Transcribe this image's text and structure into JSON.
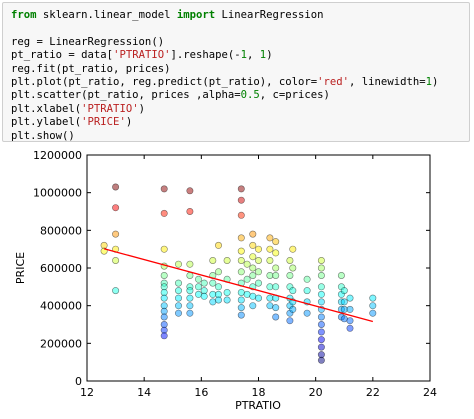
{
  "code_cell": {
    "lines": [
      {
        "segments": [
          {
            "t": "from",
            "c": "kw"
          },
          {
            "t": " sklearn.linear_model ",
            "c": ""
          },
          {
            "t": "import",
            "c": "kw"
          },
          {
            "t": " LinearRegression",
            "c": ""
          }
        ]
      },
      {
        "segments": [
          {
            "t": "",
            "c": ""
          }
        ]
      },
      {
        "segments": [
          {
            "t": "reg = LinearRegression()",
            "c": ""
          }
        ]
      },
      {
        "segments": [
          {
            "t": "pt_ratio = data[",
            "c": ""
          },
          {
            "t": "'PTRATIO'",
            "c": "str"
          },
          {
            "t": "].reshape(-",
            "c": ""
          },
          {
            "t": "1",
            "c": "num"
          },
          {
            "t": ", ",
            "c": ""
          },
          {
            "t": "1",
            "c": "num"
          },
          {
            "t": ")",
            "c": ""
          }
        ]
      },
      {
        "segments": [
          {
            "t": "reg.fit(pt_ratio, prices)",
            "c": ""
          }
        ]
      },
      {
        "segments": [
          {
            "t": "plt.plot(pt_ratio, reg.predict(pt_ratio), color=",
            "c": ""
          },
          {
            "t": "'red'",
            "c": "str"
          },
          {
            "t": ", linewidth=",
            "c": ""
          },
          {
            "t": "1",
            "c": "num"
          },
          {
            "t": ")",
            "c": ""
          }
        ]
      },
      {
        "segments": [
          {
            "t": "plt.scatter(pt_ratio, prices ,alpha=",
            "c": ""
          },
          {
            "t": "0.5",
            "c": "num"
          },
          {
            "t": ", c=prices)",
            "c": ""
          }
        ]
      },
      {
        "segments": [
          {
            "t": "plt.xlabel(",
            "c": ""
          },
          {
            "t": "'PTRATIO'",
            "c": "str"
          },
          {
            "t": ")",
            "c": ""
          }
        ]
      },
      {
        "segments": [
          {
            "t": "plt.ylabel(",
            "c": ""
          },
          {
            "t": "'PRICE'",
            "c": "str"
          },
          {
            "t": ")",
            "c": ""
          }
        ]
      },
      {
        "segments": [
          {
            "t": "plt.show()",
            "c": ""
          }
        ]
      }
    ]
  },
  "chart_data": {
    "type": "scatter",
    "title": "",
    "xlabel": "PTRATIO",
    "ylabel": "PRICE",
    "xlim": [
      12,
      24
    ],
    "ylim": [
      0,
      1200000
    ],
    "x_ticks": [
      "12",
      "14",
      "16",
      "18",
      "20",
      "22",
      "24"
    ],
    "y_ticks": [
      "0",
      "200000",
      "400000",
      "600000",
      "800000",
      "1000000",
      "1200000"
    ],
    "grid": false,
    "colormap": "jet",
    "alpha": 0.5,
    "points": [
      [
        13.0,
        1030000
      ],
      [
        13.0,
        920000
      ],
      [
        13.0,
        780000
      ],
      [
        13.0,
        700000
      ],
      [
        13.0,
        640000
      ],
      [
        13.0,
        480000
      ],
      [
        12.6,
        720000
      ],
      [
        12.6,
        690000
      ],
      [
        14.7,
        1020000
      ],
      [
        14.7,
        890000
      ],
      [
        14.7,
        700000
      ],
      [
        14.7,
        610000
      ],
      [
        14.7,
        560000
      ],
      [
        14.7,
        520000
      ],
      [
        14.7,
        500000
      ],
      [
        14.7,
        470000
      ],
      [
        14.7,
        440000
      ],
      [
        14.7,
        400000
      ],
      [
        14.7,
        370000
      ],
      [
        14.7,
        340000
      ],
      [
        14.7,
        300000
      ],
      [
        14.7,
        270000
      ],
      [
        14.7,
        240000
      ],
      [
        15.2,
        620000
      ],
      [
        15.2,
        520000
      ],
      [
        15.2,
        480000
      ],
      [
        15.2,
        440000
      ],
      [
        15.2,
        400000
      ],
      [
        15.2,
        360000
      ],
      [
        15.6,
        1010000
      ],
      [
        15.6,
        900000
      ],
      [
        15.6,
        620000
      ],
      [
        15.6,
        560000
      ],
      [
        15.6,
        500000
      ],
      [
        15.6,
        480000
      ],
      [
        15.6,
        440000
      ],
      [
        15.6,
        400000
      ],
      [
        15.6,
        360000
      ],
      [
        15.9,
        540000
      ],
      [
        15.9,
        500000
      ],
      [
        15.9,
        460000
      ],
      [
        16.1,
        520000
      ],
      [
        16.1,
        480000
      ],
      [
        16.1,
        450000
      ],
      [
        16.4,
        640000
      ],
      [
        16.4,
        560000
      ],
      [
        16.4,
        520000
      ],
      [
        16.4,
        460000
      ],
      [
        16.4,
        420000
      ],
      [
        16.6,
        720000
      ],
      [
        16.6,
        580000
      ],
      [
        16.6,
        500000
      ],
      [
        16.6,
        460000
      ],
      [
        16.6,
        430000
      ],
      [
        16.9,
        640000
      ],
      [
        16.9,
        540000
      ],
      [
        16.9,
        470000
      ],
      [
        16.9,
        430000
      ],
      [
        17.4,
        1020000
      ],
      [
        17.4,
        960000
      ],
      [
        17.4,
        880000
      ],
      [
        17.4,
        760000
      ],
      [
        17.4,
        690000
      ],
      [
        17.4,
        640000
      ],
      [
        17.4,
        580000
      ],
      [
        17.4,
        520000
      ],
      [
        17.4,
        470000
      ],
      [
        17.4,
        430000
      ],
      [
        17.4,
        390000
      ],
      [
        17.4,
        350000
      ],
      [
        17.6,
        620000
      ],
      [
        17.6,
        540000
      ],
      [
        17.6,
        460000
      ],
      [
        17.8,
        780000
      ],
      [
        17.8,
        720000
      ],
      [
        17.8,
        660000
      ],
      [
        17.8,
        600000
      ],
      [
        17.8,
        560000
      ],
      [
        17.8,
        500000
      ],
      [
        17.8,
        450000
      ],
      [
        17.8,
        400000
      ],
      [
        18.0,
        700000
      ],
      [
        18.0,
        640000
      ],
      [
        18.0,
        580000
      ],
      [
        18.0,
        520000
      ],
      [
        18.0,
        440000
      ],
      [
        18.4,
        760000
      ],
      [
        18.4,
        700000
      ],
      [
        18.4,
        640000
      ],
      [
        18.4,
        560000
      ],
      [
        18.4,
        500000
      ],
      [
        18.4,
        440000
      ],
      [
        18.4,
        400000
      ],
      [
        18.6,
        740000
      ],
      [
        18.6,
        680000
      ],
      [
        18.6,
        600000
      ],
      [
        18.6,
        560000
      ],
      [
        18.6,
        500000
      ],
      [
        18.6,
        440000
      ],
      [
        18.6,
        390000
      ],
      [
        18.6,
        340000
      ],
      [
        19.1,
        640000
      ],
      [
        19.1,
        560000
      ],
      [
        19.1,
        500000
      ],
      [
        19.1,
        440000
      ],
      [
        19.1,
        400000
      ],
      [
        19.1,
        360000
      ],
      [
        19.1,
        320000
      ],
      [
        19.2,
        700000
      ],
      [
        19.2,
        600000
      ],
      [
        19.2,
        480000
      ],
      [
        19.2,
        420000
      ],
      [
        19.2,
        380000
      ],
      [
        19.7,
        540000
      ],
      [
        19.7,
        480000
      ],
      [
        19.7,
        420000
      ],
      [
        19.7,
        360000
      ],
      [
        20.2,
        640000
      ],
      [
        20.2,
        600000
      ],
      [
        20.2,
        560000
      ],
      [
        20.2,
        500000
      ],
      [
        20.2,
        460000
      ],
      [
        20.2,
        420000
      ],
      [
        20.2,
        380000
      ],
      [
        20.2,
        340000
      ],
      [
        20.2,
        300000
      ],
      [
        20.2,
        260000
      ],
      [
        20.2,
        220000
      ],
      [
        20.2,
        180000
      ],
      [
        20.2,
        140000
      ],
      [
        20.2,
        110000
      ],
      [
        20.9,
        560000
      ],
      [
        20.9,
        500000
      ],
      [
        20.9,
        460000
      ],
      [
        20.9,
        420000
      ],
      [
        20.9,
        380000
      ],
      [
        20.9,
        340000
      ],
      [
        21.0,
        480000
      ],
      [
        21.0,
        420000
      ],
      [
        21.0,
        380000
      ],
      [
        21.0,
        330000
      ],
      [
        21.2,
        440000
      ],
      [
        21.2,
        380000
      ],
      [
        21.2,
        320000
      ],
      [
        21.2,
        280000
      ],
      [
        22.0,
        440000
      ],
      [
        22.0,
        400000
      ],
      [
        22.0,
        360000
      ]
    ],
    "regression_line": {
      "color": "#ff0000",
      "x": [
        12.6,
        22.0
      ],
      "y": [
        702000,
        316000
      ]
    }
  }
}
